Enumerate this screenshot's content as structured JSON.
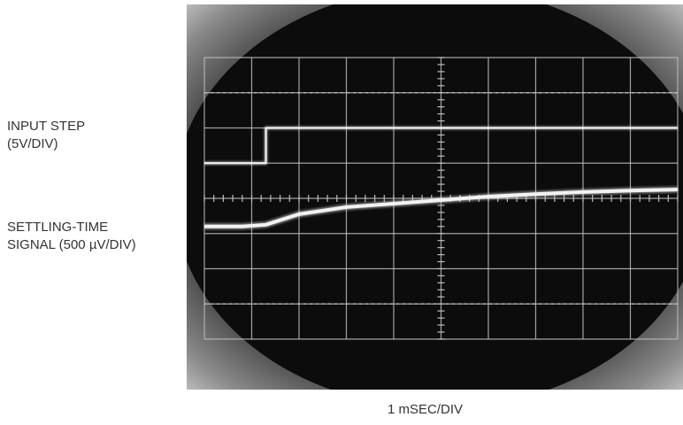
{
  "labels": {
    "input_line1": "INPUT STEP",
    "input_line2": "(5V/DIV)",
    "settling_line1": "SETTLING-TIME",
    "settling_line2": "SIGNAL (500 µV/DIV)",
    "x_axis": "1 mSEC/DIV"
  },
  "colors": {
    "bezel": "#b8b8b8",
    "screen": "#0c0c0c",
    "grid": "#bdbdbd",
    "trace": "#f2f2f2"
  },
  "chart_data": {
    "type": "line",
    "title": "",
    "xlabel": "1 mSEC/DIV",
    "x_unit": "div",
    "y_unit": "div",
    "xlim": [
      0,
      10
    ],
    "ylim": [
      0,
      8
    ],
    "grid": true,
    "series": [
      {
        "name": "INPUT STEP (5V/DIV)",
        "x": [
          0,
          1.3,
          1.3,
          10
        ],
        "y": [
          5.0,
          5.0,
          6.0,
          6.0
        ]
      },
      {
        "name": "SETTLING-TIME SIGNAL (500 µV/DIV)",
        "x": [
          0,
          0.8,
          1.3,
          2,
          3,
          4,
          5,
          6,
          7,
          8,
          9,
          10
        ],
        "y": [
          3.2,
          3.2,
          3.25,
          3.55,
          3.75,
          3.85,
          3.95,
          4.05,
          4.12,
          4.18,
          4.22,
          4.25
        ]
      }
    ]
  }
}
